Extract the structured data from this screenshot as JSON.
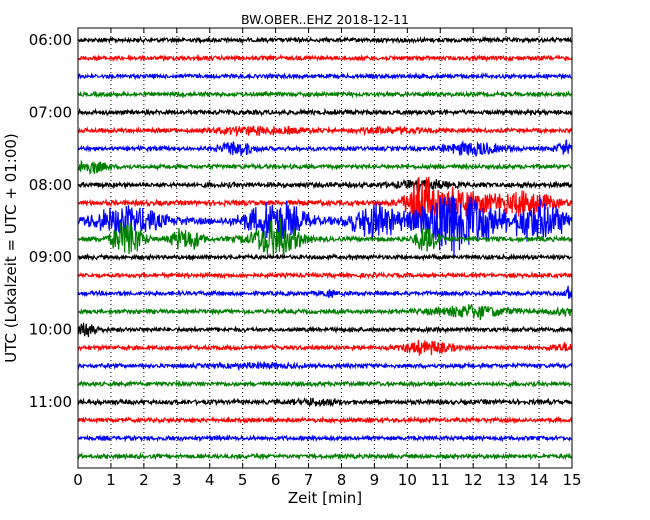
{
  "chart_data": {
    "type": "line",
    "chart_kind": "helicorder (seismogram drum plot)",
    "title": "BW.OBER..EHZ 2018-12-11",
    "xlabel": "Zeit  [min]",
    "ylabel": "UTC (Lokalzeit = UTC + 01:00)",
    "xlim": [
      0,
      15
    ],
    "x_ticks": [
      "0",
      "1",
      "2",
      "3",
      "4",
      "5",
      "6",
      "7",
      "8",
      "9",
      "10",
      "11",
      "12",
      "13",
      "14",
      "15"
    ],
    "y_ticks": [
      "06:00",
      "07:00",
      "08:00",
      "09:00",
      "10:00",
      "11:00"
    ],
    "grid": "vertical dotted lines at each minute",
    "trace_colors": [
      "#000000",
      "#ff0000",
      "#0000ff",
      "#008000"
    ],
    "traces": [
      {
        "start": "06:00",
        "color": "#000000",
        "base_amplitude": 1.0,
        "events": []
      },
      {
        "start": "06:15",
        "color": "#ff0000",
        "base_amplitude": 1.0,
        "events": []
      },
      {
        "start": "06:30",
        "color": "#0000ff",
        "base_amplitude": 1.0,
        "events": []
      },
      {
        "start": "06:45",
        "color": "#008000",
        "base_amplitude": 1.0,
        "events": []
      },
      {
        "start": "07:00",
        "color": "#000000",
        "base_amplitude": 1.1,
        "events": []
      },
      {
        "start": "07:15",
        "color": "#ff0000",
        "base_amplitude": 1.0,
        "events": [
          {
            "minute": 5.5,
            "width": 2.0,
            "amp": 2.5
          },
          {
            "minute": 9.5,
            "width": 1.5,
            "amp": 2.0
          }
        ]
      },
      {
        "start": "07:30",
        "color": "#0000ff",
        "base_amplitude": 1.0,
        "events": [
          {
            "minute": 4.8,
            "width": 0.7,
            "amp": 4.0
          },
          {
            "minute": 12.0,
            "width": 1.2,
            "amp": 4.0
          },
          {
            "minute": 14.8,
            "width": 0.4,
            "amp": 4.0
          }
        ]
      },
      {
        "start": "07:45",
        "color": "#008000",
        "base_amplitude": 1.0,
        "events": [
          {
            "minute": 0.4,
            "width": 0.6,
            "amp": 4.0
          }
        ]
      },
      {
        "start": "08:00",
        "color": "#000000",
        "base_amplitude": 1.2,
        "events": [
          {
            "minute": 10.5,
            "width": 1.0,
            "amp": 2.5
          }
        ]
      },
      {
        "start": "08:15",
        "color": "#ff0000",
        "base_amplitude": 1.2,
        "events": [
          {
            "minute": 10.4,
            "width": 0.6,
            "amp": 12.0
          },
          {
            "minute": 11.5,
            "width": 1.2,
            "amp": 6.0
          },
          {
            "minute": 13.5,
            "width": 1.5,
            "amp": 5.0
          }
        ]
      },
      {
        "start": "08:30",
        "color": "#0000ff",
        "base_amplitude": 1.5,
        "events": [
          {
            "minute": 1.5,
            "width": 1.5,
            "amp": 5.0
          },
          {
            "minute": 6.0,
            "width": 1.2,
            "amp": 7.0
          },
          {
            "minute": 9.0,
            "width": 1.0,
            "amp": 6.0
          },
          {
            "minute": 11.5,
            "width": 1.5,
            "amp": 12.0
          },
          {
            "minute": 14.0,
            "width": 1.2,
            "amp": 7.0
          }
        ]
      },
      {
        "start": "08:45",
        "color": "#008000",
        "base_amplitude": 1.1,
        "events": [
          {
            "minute": 1.5,
            "width": 0.6,
            "amp": 9.0
          },
          {
            "minute": 3.3,
            "width": 0.6,
            "amp": 6.0
          },
          {
            "minute": 6.0,
            "width": 1.0,
            "amp": 9.0
          },
          {
            "minute": 10.6,
            "width": 0.5,
            "amp": 6.0
          }
        ]
      },
      {
        "start": "09:00",
        "color": "#000000",
        "base_amplitude": 1.0,
        "events": []
      },
      {
        "start": "09:15",
        "color": "#ff0000",
        "base_amplitude": 1.0,
        "events": []
      },
      {
        "start": "09:30",
        "color": "#0000ff",
        "base_amplitude": 1.0,
        "events": [
          {
            "minute": 7.6,
            "width": 0.2,
            "amp": 3.0
          },
          {
            "minute": 14.9,
            "width": 0.2,
            "amp": 4.0
          }
        ]
      },
      {
        "start": "09:45",
        "color": "#008000",
        "base_amplitude": 1.0,
        "events": [
          {
            "minute": 12.0,
            "width": 1.5,
            "amp": 4.0
          },
          {
            "minute": 14.8,
            "width": 0.5,
            "amp": 2.5
          }
        ]
      },
      {
        "start": "10:00",
        "color": "#000000",
        "base_amplitude": 1.0,
        "events": [
          {
            "minute": 0.3,
            "width": 0.4,
            "amp": 4.0
          }
        ]
      },
      {
        "start": "10:15",
        "color": "#ff0000",
        "base_amplitude": 1.0,
        "events": [
          {
            "minute": 10.6,
            "width": 1.0,
            "amp": 4.0
          },
          {
            "minute": 14.7,
            "width": 0.5,
            "amp": 2.5
          }
        ]
      },
      {
        "start": "10:30",
        "color": "#0000ff",
        "base_amplitude": 1.0,
        "events": [
          {
            "minute": 5.5,
            "width": 1.5,
            "amp": 1.8
          }
        ]
      },
      {
        "start": "10:45",
        "color": "#008000",
        "base_amplitude": 1.0,
        "events": []
      },
      {
        "start": "11:00",
        "color": "#000000",
        "base_amplitude": 1.1,
        "events": [
          {
            "minute": 7.4,
            "width": 1.0,
            "amp": 2.0
          }
        ]
      },
      {
        "start": "11:15",
        "color": "#ff0000",
        "base_amplitude": 1.0,
        "events": []
      },
      {
        "start": "11:30",
        "color": "#0000ff",
        "base_amplitude": 1.0,
        "events": []
      },
      {
        "start": "11:45",
        "color": "#008000",
        "base_amplitude": 1.0,
        "events": []
      }
    ]
  }
}
